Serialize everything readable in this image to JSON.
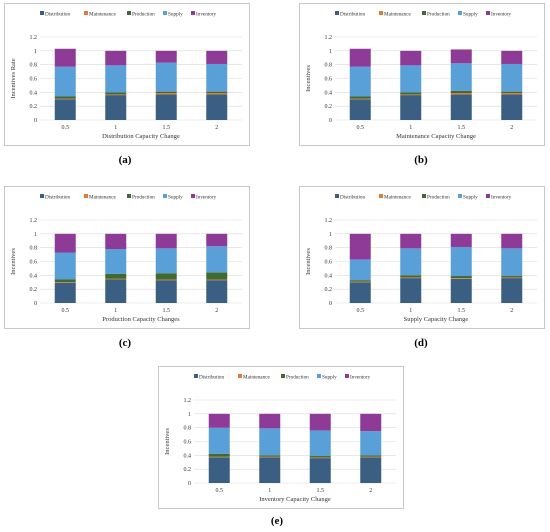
{
  "legend": [
    {
      "name": "Distribution",
      "color": "#3a5f82"
    },
    {
      "name": "Maintenance",
      "color": "#e07b39"
    },
    {
      "name": "Production",
      "color": "#3e6b2f"
    },
    {
      "name": "Supply",
      "color": "#5aa0d8"
    },
    {
      "name": "Inventory",
      "color": "#8e3b97"
    }
  ],
  "chart_data": [
    {
      "type": "bar",
      "stacked": true,
      "categories": [
        "0.5",
        "1",
        "1.5",
        "2"
      ],
      "ylabel": "Incentives Rate",
      "xlabel": "Distribution Capacity Change",
      "ylim": [
        0,
        1.2
      ],
      "yticks": [
        "0",
        "0.2",
        "0.4",
        "0.6",
        "0.8",
        "1",
        "1.2"
      ],
      "grid": true,
      "legend_position": "top",
      "caption": "(a)",
      "series": [
        {
          "name": "Distribution",
          "values": [
            0.3,
            0.36,
            0.37,
            0.37
          ]
        },
        {
          "name": "Maintenance",
          "values": [
            0.01,
            0.01,
            0.02,
            0.02
          ]
        },
        {
          "name": "Production",
          "values": [
            0.03,
            0.03,
            0.02,
            0.02
          ]
        },
        {
          "name": "Supply",
          "values": [
            0.43,
            0.39,
            0.42,
            0.4
          ]
        },
        {
          "name": "Inventory",
          "values": [
            0.26,
            0.21,
            0.17,
            0.19
          ]
        }
      ]
    },
    {
      "type": "bar",
      "stacked": true,
      "categories": [
        "0.5",
        "1",
        "1.5",
        "2"
      ],
      "ylabel": "Incentives",
      "xlabel": "Maintenance Capacity Change",
      "ylim": [
        0,
        1.2
      ],
      "yticks": [
        "0",
        "0.2",
        "0.4",
        "0.6",
        "0.8",
        "1",
        "1.2"
      ],
      "grid": true,
      "legend_position": "top",
      "caption": "(b)",
      "series": [
        {
          "name": "Distribution",
          "values": [
            0.3,
            0.36,
            0.37,
            0.37
          ]
        },
        {
          "name": "Maintenance",
          "values": [
            0.01,
            0.01,
            0.02,
            0.02
          ]
        },
        {
          "name": "Production",
          "values": [
            0.03,
            0.03,
            0.03,
            0.02
          ]
        },
        {
          "name": "Supply",
          "values": [
            0.43,
            0.39,
            0.4,
            0.4
          ]
        },
        {
          "name": "Inventory",
          "values": [
            0.26,
            0.21,
            0.2,
            0.19
          ]
        }
      ]
    },
    {
      "type": "bar",
      "stacked": true,
      "categories": [
        "0.5",
        "1",
        "1.5",
        "2"
      ],
      "ylabel": "Incentives",
      "xlabel": "Production Capacity Changes",
      "ylim": [
        0,
        1.2
      ],
      "yticks": [
        "0",
        "0.2",
        "0.4",
        "0.6",
        "0.8",
        "1",
        "1.2"
      ],
      "grid": true,
      "legend_position": "top",
      "caption": "(c)",
      "series": [
        {
          "name": "Distribution",
          "values": [
            0.29,
            0.34,
            0.33,
            0.33
          ]
        },
        {
          "name": "Maintenance",
          "values": [
            0.01,
            0.01,
            0.01,
            0.01
          ]
        },
        {
          "name": "Production",
          "values": [
            0.04,
            0.07,
            0.09,
            0.1
          ]
        },
        {
          "name": "Supply",
          "values": [
            0.39,
            0.36,
            0.36,
            0.38
          ]
        },
        {
          "name": "Inventory",
          "values": [
            0.27,
            0.22,
            0.21,
            0.18
          ]
        }
      ]
    },
    {
      "type": "bar",
      "stacked": true,
      "categories": [
        "0.5",
        "1",
        "1.5",
        "2"
      ],
      "ylabel": "Incentives",
      "xlabel": "Supply Capacity Change",
      "ylim": [
        0,
        1.2
      ],
      "yticks": [
        "0",
        "0.2",
        "0.4",
        "0.6",
        "0.8",
        "1",
        "1.2"
      ],
      "grid": true,
      "legend_position": "top",
      "caption": "(d)",
      "series": [
        {
          "name": "Distribution",
          "values": [
            0.3,
            0.36,
            0.35,
            0.36
          ]
        },
        {
          "name": "Maintenance",
          "values": [
            0.01,
            0.01,
            0.01,
            0.01
          ]
        },
        {
          "name": "Production",
          "values": [
            0.02,
            0.03,
            0.03,
            0.02
          ]
        },
        {
          "name": "Supply",
          "values": [
            0.3,
            0.39,
            0.42,
            0.4
          ]
        },
        {
          "name": "Inventory",
          "values": [
            0.37,
            0.21,
            0.19,
            0.21
          ]
        }
      ]
    },
    {
      "type": "bar",
      "stacked": true,
      "categories": [
        "0.5",
        "1",
        "1.5",
        "2"
      ],
      "ylabel": "Incentives",
      "xlabel": "Inventory Capacity Change",
      "ylim": [
        0,
        1.2
      ],
      "yticks": [
        "0",
        "0.2",
        "0.4",
        "0.6",
        "0.8",
        "1",
        "1.2"
      ],
      "grid": true,
      "legend_position": "top",
      "caption": "(e)",
      "series": [
        {
          "name": "Distribution",
          "values": [
            0.37,
            0.37,
            0.36,
            0.37
          ]
        },
        {
          "name": "Maintenance",
          "values": [
            0.01,
            0.01,
            0.01,
            0.01
          ]
        },
        {
          "name": "Production",
          "values": [
            0.04,
            0.02,
            0.02,
            0.02
          ]
        },
        {
          "name": "Supply",
          "values": [
            0.38,
            0.39,
            0.37,
            0.35
          ]
        },
        {
          "name": "Inventory",
          "values": [
            0.2,
            0.21,
            0.24,
            0.25
          ]
        }
      ]
    }
  ]
}
